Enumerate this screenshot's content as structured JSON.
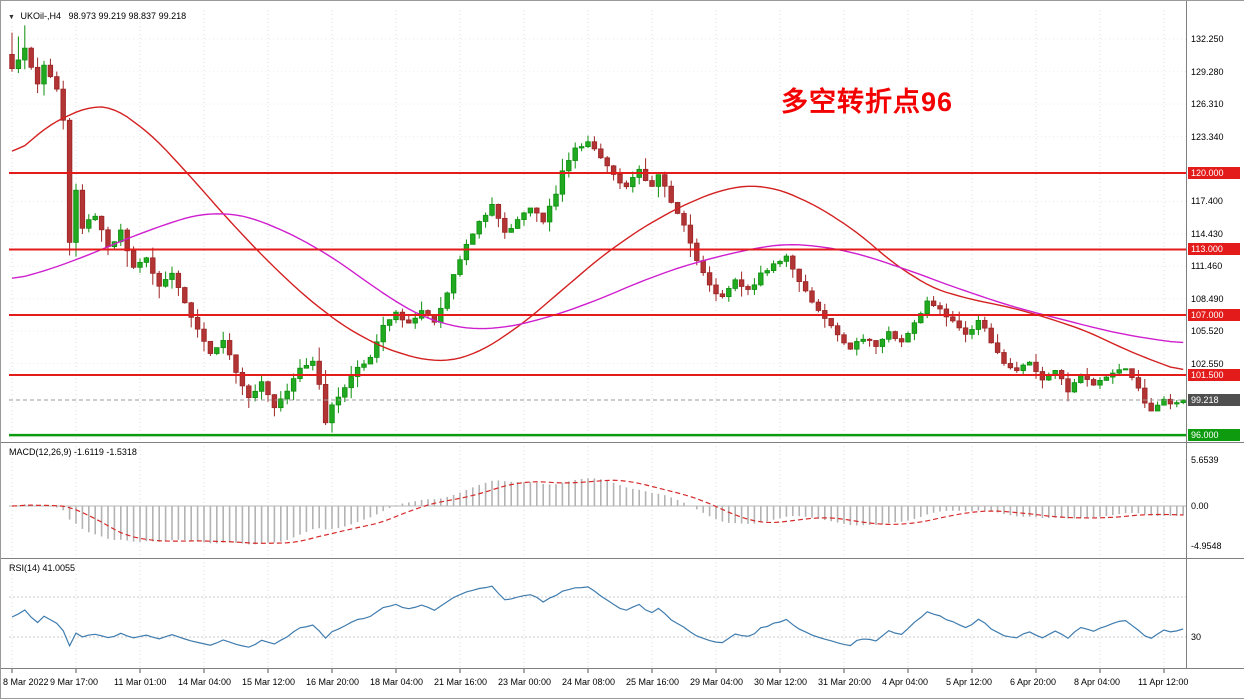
{
  "header": {
    "collapse_icon": "▼",
    "symbol_timeframe": "UKOil-,H4",
    "ohlc_text": "98.973 99.219 98.837 99.218"
  },
  "annotation": {
    "text": "多空转折点96",
    "color": "#f30000"
  },
  "panels": {
    "macd": {
      "label": "MACD(12,26,9)",
      "values": "-1.6119 -1.5318",
      "axis_labels": [
        "5.6539",
        "0.00",
        "-4.9548"
      ]
    },
    "rsi": {
      "label": "RSI(14)",
      "values": "41.0055",
      "axis_labels": [
        "30"
      ]
    }
  },
  "price_axis": {
    "regular_labels": [
      {
        "text": "132.250",
        "price": 132.25
      },
      {
        "text": "129.280",
        "price": 129.28
      },
      {
        "text": "126.310",
        "price": 126.31
      },
      {
        "text": "123.340",
        "price": 123.34
      },
      {
        "text": "117.400",
        "price": 117.4
      },
      {
        "text": "114.430",
        "price": 114.43
      },
      {
        "text": "111.460",
        "price": 111.46
      },
      {
        "text": "108.490",
        "price": 108.49
      },
      {
        "text": "105.520",
        "price": 105.52
      },
      {
        "text": "102.550",
        "price": 102.55
      }
    ],
    "line_badges": [
      {
        "text": "120.000",
        "price": 120.0,
        "color": "#e31b1b"
      },
      {
        "text": "113.000",
        "price": 113.0,
        "color": "#e31b1b"
      },
      {
        "text": "107.000",
        "price": 107.0,
        "color": "#e31b1b"
      },
      {
        "text": "101.500",
        "price": 101.5,
        "color": "#e31b1b"
      },
      {
        "text": "96.000",
        "price": 96.0,
        "color": "#0f9b0f"
      }
    ],
    "current_badge": {
      "text": "99.218",
      "price": 99.218,
      "color": "#4f4f4f"
    }
  },
  "chart_data": {
    "type": "candlestick",
    "symbol": "UKOil-",
    "timeframe": "H4",
    "last_ohlc": {
      "open": 98.973,
      "high": 99.219,
      "low": 98.837,
      "close": 99.218
    },
    "ylim": [
      95.4,
      135.0
    ],
    "current_price": 99.218,
    "num_candles": 184,
    "horizontal_lines": [
      {
        "price": 120.0,
        "color": "#e31b1b",
        "width": 2
      },
      {
        "price": 113.0,
        "color": "#e31b1b",
        "width": 2
      },
      {
        "price": 107.0,
        "color": "#e31b1b",
        "width": 2
      },
      {
        "price": 101.5,
        "color": "#e31b1b",
        "width": 2
      },
      {
        "price": 96.0,
        "color": "#0f9b0f",
        "width": 2.5
      }
    ],
    "close_path_anchors": [
      [
        0,
        129.5
      ],
      [
        2,
        131.3
      ],
      [
        4,
        128.2
      ],
      [
        5,
        129.8
      ],
      [
        7,
        127.6
      ],
      [
        8,
        125.0
      ],
      [
        9,
        113.6
      ],
      [
        10,
        118.3
      ],
      [
        11,
        115.0
      ],
      [
        13,
        116.2
      ],
      [
        15,
        113.2
      ],
      [
        17,
        114.6
      ],
      [
        19,
        111.2
      ],
      [
        21,
        112.2
      ],
      [
        23,
        109.6
      ],
      [
        25,
        110.8
      ],
      [
        27,
        108.2
      ],
      [
        29,
        105.6
      ],
      [
        31,
        103.6
      ],
      [
        33,
        104.8
      ],
      [
        35,
        101.6
      ],
      [
        37,
        99.6
      ],
      [
        39,
        100.8
      ],
      [
        41,
        98.6
      ],
      [
        43,
        100.2
      ],
      [
        45,
        102.2
      ],
      [
        47,
        102.9
      ],
      [
        48,
        100.6
      ],
      [
        49,
        97.2
      ],
      [
        50,
        98.6
      ],
      [
        52,
        100.2
      ],
      [
        54,
        102.2
      ],
      [
        56,
        103.2
      ],
      [
        58,
        106.2
      ],
      [
        60,
        107.3
      ],
      [
        62,
        106.1
      ],
      [
        64,
        107.4
      ],
      [
        66,
        106.4
      ],
      [
        68,
        109.2
      ],
      [
        70,
        112.2
      ],
      [
        72,
        114.6
      ],
      [
        74,
        116.2
      ],
      [
        75,
        117.2
      ],
      [
        77,
        114.4
      ],
      [
        79,
        115.6
      ],
      [
        81,
        116.7
      ],
      [
        83,
        115.6
      ],
      [
        85,
        118.2
      ],
      [
        86,
        120.0
      ],
      [
        88,
        122.2
      ],
      [
        90,
        122.8
      ],
      [
        92,
        121.4
      ],
      [
        94,
        119.8
      ],
      [
        96,
        118.6
      ],
      [
        98,
        120.2
      ],
      [
        100,
        118.8
      ],
      [
        101,
        119.9
      ],
      [
        103,
        117.4
      ],
      [
        105,
        115.2
      ],
      [
        107,
        112.0
      ],
      [
        109,
        109.6
      ],
      [
        111,
        108.6
      ],
      [
        113,
        110.2
      ],
      [
        115,
        109.2
      ],
      [
        117,
        110.7
      ],
      [
        119,
        111.7
      ],
      [
        121,
        112.4
      ],
      [
        123,
        110.2
      ],
      [
        125,
        108.2
      ],
      [
        127,
        106.7
      ],
      [
        129,
        105.2
      ],
      [
        131,
        103.9
      ],
      [
        133,
        104.9
      ],
      [
        135,
        104.1
      ],
      [
        137,
        105.4
      ],
      [
        139,
        104.4
      ],
      [
        141,
        106.2
      ],
      [
        143,
        108.4
      ],
      [
        145,
        107.4
      ],
      [
        147,
        106.4
      ],
      [
        149,
        105.1
      ],
      [
        151,
        106.6
      ],
      [
        153,
        104.6
      ],
      [
        155,
        102.6
      ],
      [
        157,
        101.9
      ],
      [
        159,
        102.6
      ],
      [
        161,
        100.9
      ],
      [
        163,
        101.9
      ],
      [
        165,
        100.1
      ],
      [
        167,
        101.6
      ],
      [
        169,
        100.6
      ],
      [
        171,
        101.4
      ],
      [
        174,
        102.2
      ],
      [
        176,
        100.2
      ],
      [
        177,
        99.1
      ],
      [
        178,
        98.3
      ],
      [
        180,
        99.4
      ],
      [
        181,
        98.9
      ],
      [
        183,
        99.218
      ]
    ],
    "ma_fast_red_anchors": [
      [
        0,
        121.5
      ],
      [
        6,
        124.5
      ],
      [
        12,
        126.1
      ],
      [
        16,
        126.0
      ],
      [
        22,
        123.4
      ],
      [
        28,
        119.6
      ],
      [
        34,
        115.6
      ],
      [
        40,
        111.9
      ],
      [
        46,
        108.6
      ],
      [
        52,
        105.9
      ],
      [
        58,
        104.0
      ],
      [
        64,
        102.9
      ],
      [
        69,
        102.8
      ],
      [
        74,
        103.9
      ],
      [
        80,
        106.3
      ],
      [
        86,
        109.3
      ],
      [
        92,
        112.3
      ],
      [
        98,
        114.8
      ],
      [
        104,
        116.8
      ],
      [
        110,
        118.3
      ],
      [
        115,
        118.9
      ],
      [
        120,
        118.5
      ],
      [
        126,
        116.9
      ],
      [
        132,
        114.6
      ],
      [
        138,
        111.6
      ],
      [
        144,
        109.4
      ],
      [
        150,
        108.4
      ],
      [
        156,
        107.7
      ],
      [
        162,
        106.7
      ],
      [
        168,
        105.5
      ],
      [
        173,
        104.1
      ],
      [
        177,
        103.1
      ],
      [
        183,
        101.8
      ]
    ],
    "ma_slow_magenta_anchors": [
      [
        0,
        110.2
      ],
      [
        6,
        111.2
      ],
      [
        12,
        112.5
      ],
      [
        18,
        114.0
      ],
      [
        24,
        115.3
      ],
      [
        29,
        116.2
      ],
      [
        34,
        116.3
      ],
      [
        38,
        115.8
      ],
      [
        44,
        114.3
      ],
      [
        50,
        112.3
      ],
      [
        56,
        109.8
      ],
      [
        60,
        108.2
      ],
      [
        64,
        106.9
      ],
      [
        68,
        106.1
      ],
      [
        72,
        105.7
      ],
      [
        76,
        105.8
      ],
      [
        80,
        106.2
      ],
      [
        86,
        107.2
      ],
      [
        92,
        108.5
      ],
      [
        98,
        110.0
      ],
      [
        104,
        111.3
      ],
      [
        110,
        112.3
      ],
      [
        116,
        113.1
      ],
      [
        121,
        113.5
      ],
      [
        126,
        113.3
      ],
      [
        130,
        112.9
      ],
      [
        134,
        112.3
      ],
      [
        138,
        111.5
      ],
      [
        142,
        110.7
      ],
      [
        146,
        109.8
      ],
      [
        150,
        109.0
      ],
      [
        154,
        108.2
      ],
      [
        158,
        107.5
      ],
      [
        162,
        106.9
      ],
      [
        166,
        106.3
      ],
      [
        170,
        105.7
      ],
      [
        174,
        105.2
      ],
      [
        178,
        104.8
      ],
      [
        183,
        104.4
      ]
    ],
    "macd": {
      "params": [
        12,
        26,
        9
      ],
      "last_main": -1.6119,
      "last_signal": -1.5318,
      "axis": [
        5.6539,
        0,
        -4.9548
      ]
    },
    "rsi": {
      "period": 14,
      "last": 41.0055,
      "levels": [
        30,
        70
      ],
      "axis_values": [
        30
      ],
      "scale": [
        0,
        100
      ]
    },
    "time_labels": [
      "8 Mar 2022",
      "9 Mar 17:00",
      "11 Mar 01:00",
      "14 Mar 04:00",
      "15 Mar 12:00",
      "16 Mar 20:00",
      "18 Mar 04:00",
      "21 Mar 16:00",
      "23 Mar 00:00",
      "24 Mar 08:00",
      "25 Mar 16:00",
      "29 Mar 04:00",
      "30 Mar 12:00",
      "31 Mar 20:00",
      "4 Apr 04:00",
      "5 Apr 12:00",
      "6 Apr 20:00",
      "8 Apr 04:00",
      "11 Apr 12:00"
    ]
  }
}
